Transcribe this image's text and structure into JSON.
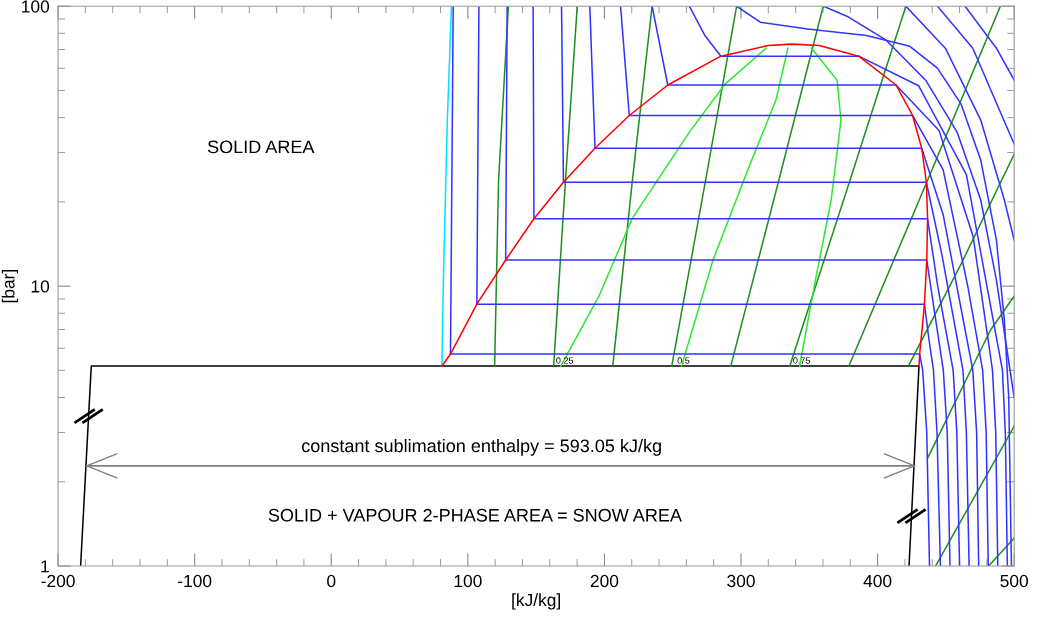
{
  "chart_data": {
    "type": "line",
    "log": "y",
    "xlabel": "[kJ/kg]",
    "ylabel": "[bar]",
    "xlim": [
      -200,
      500
    ],
    "ylim": [
      1,
      100
    ],
    "xticks": [
      -200,
      -100,
      0,
      100,
      200,
      300,
      400,
      500
    ],
    "yticks": [
      1,
      10,
      100
    ],
    "grid": false,
    "marker": "none",
    "line_style": "solid",
    "series": [
      {
        "color": "#000000",
        "x": [
          -183.5,
          -175.7,
          430.3,
          423
        ],
        "values": [
          1,
          5.18,
          5.18,
          1
        ]
      },
      {
        "color": "#808080",
        "x": [
          -179,
          427
        ],
        "values": [
          2.28,
          2.28
        ]
      },
      {
        "color": "#00e5ff",
        "x": [
          81,
          82.1,
          85,
          88
        ],
        "values": [
          5.18,
          10.5,
          39.2,
          100
        ]
      },
      {
        "color": "#1f8f1f",
        "x": [
          119.6,
          122.5,
          129.7
        ],
        "values": [
          5.18,
          23.9,
          100
        ]
      },
      {
        "color": "#1f8f1f",
        "x": [
          162.8,
          171.5,
          180.1
        ],
        "values": [
          5.18,
          23.9,
          100
        ]
      },
      {
        "color": "#1f8f1f",
        "x": [
          206.1,
          220.5,
          234.9
        ],
        "values": [
          5.18,
          23.9,
          100
        ]
      },
      {
        "color": "#1f8f1f",
        "x": [
          249.3,
          274.1,
          296.8
        ],
        "values": [
          5.18,
          23.9,
          100
        ]
      },
      {
        "color": "#1f8f1f",
        "x": [
          292.5,
          327.7,
          360.2
        ],
        "values": [
          5.18,
          23.9,
          100
        ]
      },
      {
        "color": "#1f8f1f",
        "x": [
          335.7,
          379.8,
          420.7
        ],
        "values": [
          5.18,
          23.9,
          100
        ]
      },
      {
        "color": "#1f8f1f",
        "x": [
          379.0,
          436.6,
          489.9
        ],
        "values": [
          5.18,
          23.9,
          100
        ]
      },
      {
        "color": "#1f8f1f",
        "x": [
          422.5,
          461.1,
          500
        ],
        "values": [
          5.18,
          11.98,
          29.6
        ]
      },
      {
        "color": "#1f8f1f",
        "x": [
          436.6,
          482.7,
          500
        ],
        "values": [
          2.43,
          6.97,
          9.21
        ]
      },
      {
        "color": "#1f8f1f",
        "x": [
          442.4,
          500
        ],
        "values": [
          1,
          3.16
        ]
      },
      {
        "color": "#1f8f1f",
        "x": [
          481.3,
          500
        ],
        "values": [
          1,
          1.26
        ]
      },
      {
        "color": "#33e633",
        "x": [
          168,
          196,
          220.5,
          262.2,
          288.2,
          318.4
        ],
        "values": [
          5.18,
          9.21,
          17.5,
          35.5,
          52.6,
          70.8
        ]
      },
      {
        "color": "#33e633",
        "x": [
          256.5,
          279.5,
          305.5,
          325.6,
          334.3
        ],
        "values": [
          5.18,
          12.4,
          26.4,
          46.2,
          70.8
        ]
      },
      {
        "color": "#33e633",
        "x": [
          342.9,
          354.5,
          366,
          373.2,
          370.3,
          351.6
        ],
        "values": [
          5.18,
          10.5,
          20.3,
          39.2,
          54.4,
          70.8
        ]
      },
      {
        "color": "#3333ff",
        "x": [
          89.3,
          87.3,
          430.8,
          433,
          436,
          438
        ],
        "values": [
          100,
          5.72,
          5.72,
          5.01,
          3,
          1
        ]
      },
      {
        "color": "#3333ff",
        "x": [
          108.1,
          106.6,
          434.3,
          437.5,
          440.9,
          443.5,
          446
        ],
        "values": [
          100,
          8.62,
          8.62,
          6.5,
          5.01,
          3,
          1
        ]
      },
      {
        "color": "#3333ff",
        "x": [
          128.8,
          127.7,
          436,
          441,
          448.1,
          451,
          453
        ],
        "values": [
          100,
          12.4,
          12.4,
          8.5,
          5.01,
          3,
          1
        ]
      },
      {
        "color": "#3333ff",
        "x": [
          147.8,
          148.4,
          436.6,
          444,
          455.3,
          458,
          460
        ],
        "values": [
          100,
          17.4,
          17.4,
          10,
          5.01,
          3,
          1
        ]
      },
      {
        "color": "#3333ff",
        "x": [
          168.6,
          170,
          435.7,
          447,
          462.5,
          465,
          467
        ],
        "values": [
          100,
          23.5,
          23.5,
          13,
          5.01,
          3,
          1
        ]
      },
      {
        "color": "#3333ff",
        "x": [
          189.3,
          193.1,
          432.3,
          448,
          469.7,
          472.5,
          474
        ],
        "values": [
          100,
          31.1,
          31.1,
          18,
          5.01,
          3,
          1
        ]
      },
      {
        "color": "#3333ff",
        "x": [
          211.8,
          218.2,
          425.6,
          448,
          466,
          476.9,
          479.5,
          481
        ],
        "values": [
          100,
          40.7,
          40.7,
          26,
          10,
          5.01,
          3,
          1
        ]
      },
      {
        "color": "#3333ff",
        "x": [
          234.9,
          246.4,
          413.5,
          445,
          470,
          484.1,
          486.5,
          488
        ],
        "values": [
          100,
          52.3,
          52.3,
          36,
          15,
          5.01,
          3,
          1
        ]
      },
      {
        "color": "#3333ff",
        "x": [
          262.2,
          273.8,
          285.3,
          386.2,
          430,
          465,
          491.4,
          493.5,
          495
        ],
        "values": [
          100,
          78.2,
          66.3,
          66.3,
          52,
          25,
          5.01,
          3,
          1
        ]
      },
      {
        "color": "#3333ff",
        "x": [
          296.8,
          314.1,
          348.7,
          391.9,
          423.6,
          443.8,
          461.1,
          475.5,
          487,
          492.8,
          496,
          498
        ],
        "values": [
          100,
          87.7,
          82.9,
          78.6,
          71.9,
          60.1,
          44.7,
          28.2,
          14.6,
          7.56,
          4,
          1
        ]
      },
      {
        "color": "#3333ff",
        "x": [
          360.2,
          377.5,
          406.3,
          435.2,
          458.2,
          475.5,
          487,
          500
        ],
        "values": [
          100,
          92.1,
          75.6,
          54.4,
          35.5,
          20.3,
          10.5,
          4
        ]
      },
      {
        "color": "#3333ff",
        "x": [
          420.7,
          449.6,
          475.5,
          492.8,
          500
        ],
        "values": [
          100,
          70.8,
          39.2,
          20.3,
          14.6
        ]
      },
      {
        "color": "#3333ff",
        "x": [
          443.8,
          469.7,
          489.9,
          500
        ],
        "values": [
          100,
          70.8,
          41.8,
          32.2
        ]
      },
      {
        "color": "#3333ff",
        "x": [
          464,
          487,
          500
        ],
        "values": [
          100,
          70.8,
          54.4
        ]
      },
      {
        "color": "#ff0000",
        "x": [
          81,
          87.3,
          106.6,
          127.7,
          148.4,
          170,
          193.1,
          218.2,
          246.4,
          285.3,
          319.9,
          337.2,
          357.3,
          386.2,
          413.5,
          425.6,
          432.3,
          435.7,
          436.6,
          436,
          434.3,
          430.8,
          430.3
        ],
        "values": [
          5.18,
          5.72,
          8.62,
          12.4,
          17.4,
          23.5,
          31.1,
          40.7,
          52.3,
          66.3,
          72.4,
          73.2,
          72.4,
          66.3,
          52.3,
          40.7,
          31.1,
          23.5,
          17.4,
          12.4,
          8.62,
          5.72,
          5.18
        ]
      }
    ],
    "annotations": [
      "SOLID AREA",
      "constant sublimation enthalpy = 593.05 kJ/kg",
      "SOLID + VAPOUR 2-PHASE AREA = SNOW AREA",
      {
        "text": "0.25",
        "x": 170.9,
        "y": 5.58
      },
      {
        "text": "0.5",
        "x": 257.9,
        "y": 5.58
      },
      {
        "text": "0.75",
        "x": 344.4,
        "y": 5.58
      }
    ]
  }
}
